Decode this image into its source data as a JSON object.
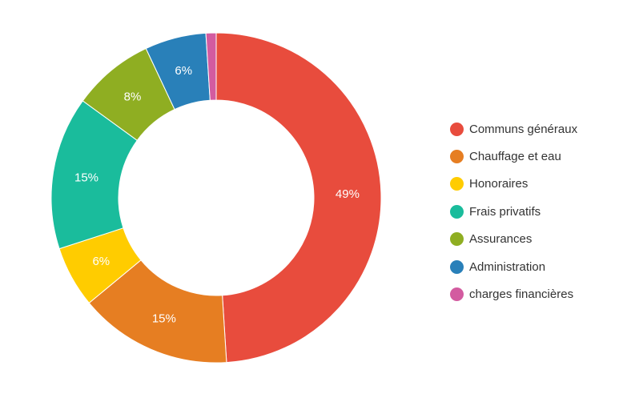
{
  "chart_data": {
    "type": "pie",
    "donut": true,
    "categories": [
      "Communs généraux",
      "Chauffage et eau",
      "Honoraires",
      "Frais privatifs",
      "Assurances",
      "Administration",
      "charges financières"
    ],
    "values": [
      49,
      15,
      6,
      15,
      8,
      6,
      1
    ],
    "labels": [
      "49%",
      "15%",
      "6%",
      "15%",
      "8%",
      "6%",
      ""
    ],
    "colors": [
      "#e84c3d",
      "#e67e22",
      "#ffcc00",
      "#1abc9c",
      "#8fae22",
      "#2980b9",
      "#d35ba0"
    ],
    "legend_position": "right"
  }
}
